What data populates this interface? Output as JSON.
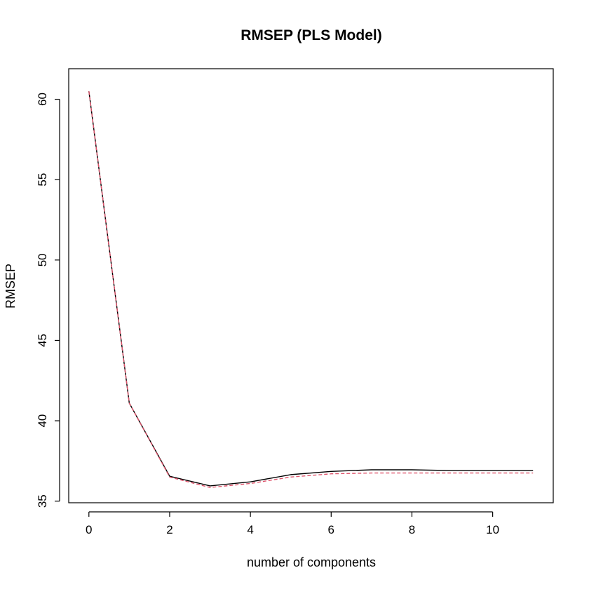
{
  "chart_data": {
    "type": "line",
    "title": "RMSEP (PLS Model)",
    "xlabel": "number of components",
    "ylabel": "RMSEP",
    "x": [
      0,
      1,
      2,
      3,
      4,
      5,
      6,
      7,
      8,
      9,
      10,
      11
    ],
    "xlim": [
      -0.5,
      11.5
    ],
    "ylim": [
      34.9,
      61.9
    ],
    "xticks": [
      0,
      2,
      4,
      6,
      8,
      10
    ],
    "yticks": [
      35,
      40,
      45,
      50,
      55,
      60
    ],
    "grid": false,
    "series": [
      {
        "color": "#000000",
        "dash": "solid",
        "values": [
          60.5,
          41.1,
          36.55,
          35.95,
          36.2,
          36.65,
          36.85,
          36.95,
          36.95,
          36.9,
          36.9,
          36.9
        ]
      },
      {
        "color": "#DF536B",
        "dash": "dashed",
        "values": [
          60.5,
          41.1,
          36.5,
          35.85,
          36.1,
          36.5,
          36.7,
          36.75,
          36.75,
          36.75,
          36.75,
          36.75
        ]
      }
    ]
  }
}
